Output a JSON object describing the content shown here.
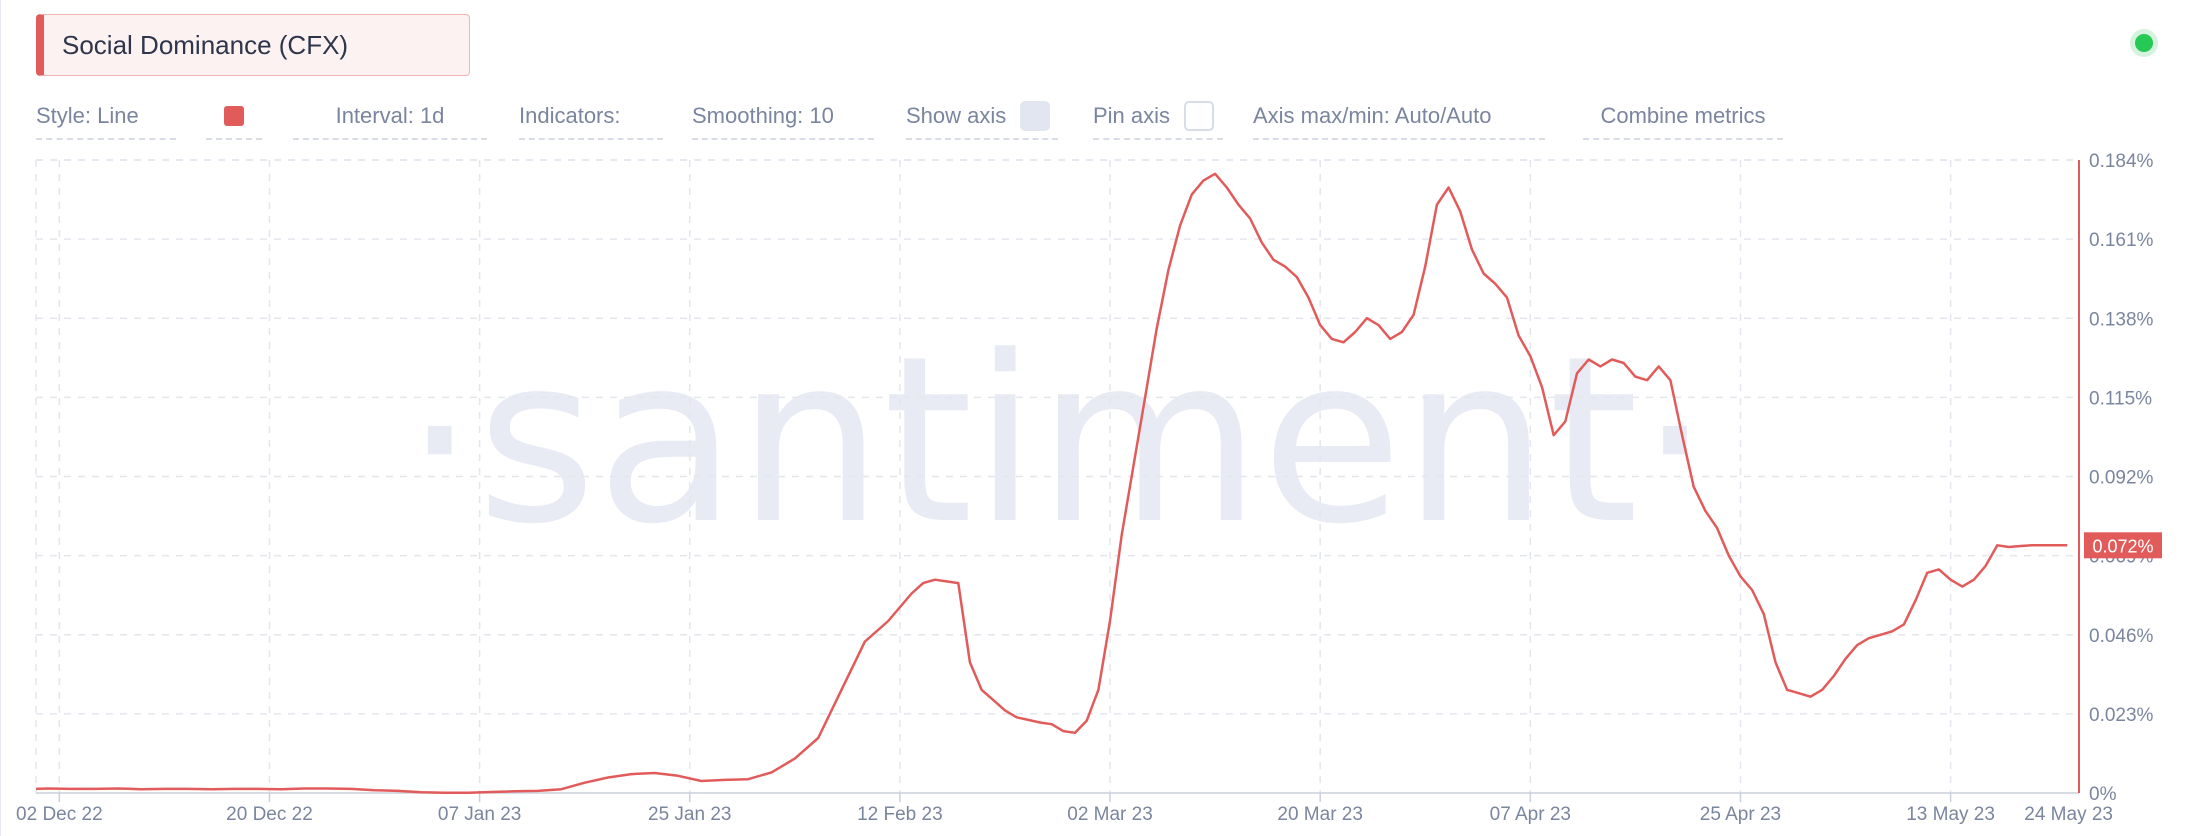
{
  "title": "Social Dominance (CFX)",
  "toolbar": {
    "style": "Style: Line",
    "interval": "Interval: 1d",
    "indicators": "Indicators:",
    "smoothing": "Smoothing: 10",
    "show_axis": "Show axis",
    "pin_axis": "Pin axis",
    "axis_maxmin": "Axis max/min: Auto/Auto",
    "combine": "Combine metrics",
    "show_axis_checked": true,
    "pin_axis_checked": false
  },
  "watermark": "·santiment·",
  "colors": {
    "line": "#e25b5b",
    "grid": "#e3e6ed",
    "text": "#7a859e",
    "watermark": "#e8ebf4",
    "status": "#26c953"
  },
  "chart_data": {
    "type": "line",
    "x_tick_labels": [
      "02 Dec 22",
      "20 Dec 22",
      "07 Jan 23",
      "25 Jan 23",
      "12 Feb 23",
      "02 Mar 23",
      "20 Mar 23",
      "07 Apr 23",
      "25 Apr 23",
      "13 May 23",
      "24 May 23"
    ],
    "y_tick_labels": [
      "0%",
      "0.023%",
      "0.046%",
      "0.069%",
      "0.092%",
      "0.115%",
      "0.138%",
      "0.161%",
      "0.184%"
    ],
    "ylim": [
      0,
      0.184
    ],
    "y_axis_side": "right",
    "grid": true,
    "current_value_label": "0.072%",
    "current_value": 0.072,
    "series": [
      {
        "x": [
          "2022-11-30",
          "2022-12-01",
          "2022-12-03",
          "2022-12-05",
          "2022-12-07",
          "2022-12-09",
          "2022-12-11",
          "2022-12-13",
          "2022-12-15",
          "2022-12-17",
          "2022-12-19",
          "2022-12-21",
          "2022-12-23",
          "2022-12-25",
          "2022-12-27",
          "2022-12-29",
          "2022-12-31",
          "2023-01-02",
          "2023-01-04",
          "2023-01-06",
          "2023-01-08",
          "2023-01-10",
          "2023-01-12",
          "2023-01-14",
          "2023-01-16",
          "2023-01-18",
          "2023-01-20",
          "2023-01-22",
          "2023-01-24",
          "2023-01-26",
          "2023-01-28",
          "2023-01-30",
          "2023-02-01",
          "2023-02-03",
          "2023-02-05",
          "2023-02-07",
          "2023-02-09",
          "2023-02-11",
          "2023-02-13",
          "2023-02-14",
          "2023-02-15",
          "2023-02-16",
          "2023-02-17",
          "2023-02-18",
          "2023-02-19",
          "2023-02-20",
          "2023-02-21",
          "2023-02-22",
          "2023-02-24",
          "2023-02-25",
          "2023-02-26",
          "2023-02-27",
          "2023-02-28",
          "2023-03-01",
          "2023-03-02",
          "2023-03-03",
          "2023-03-04",
          "2023-03-05",
          "2023-03-06",
          "2023-03-07",
          "2023-03-08",
          "2023-03-09",
          "2023-03-10",
          "2023-03-11",
          "2023-03-12",
          "2023-03-13",
          "2023-03-14",
          "2023-03-15",
          "2023-03-16",
          "2023-03-17",
          "2023-03-18",
          "2023-03-19",
          "2023-03-20",
          "2023-03-21",
          "2023-03-22",
          "2023-03-23",
          "2023-03-24",
          "2023-03-25",
          "2023-03-26",
          "2023-03-27",
          "2023-03-28",
          "2023-03-29",
          "2023-03-30",
          "2023-03-31",
          "2023-04-01",
          "2023-04-02",
          "2023-04-03",
          "2023-04-04",
          "2023-04-05",
          "2023-04-06",
          "2023-04-07",
          "2023-04-08",
          "2023-04-09",
          "2023-04-10",
          "2023-04-11",
          "2023-04-12",
          "2023-04-13",
          "2023-04-14",
          "2023-04-15",
          "2023-04-16",
          "2023-04-17",
          "2023-04-18",
          "2023-04-19",
          "2023-04-20",
          "2023-04-21",
          "2023-04-22",
          "2023-04-23",
          "2023-04-24",
          "2023-04-25",
          "2023-04-26",
          "2023-04-27",
          "2023-04-28",
          "2023-04-29",
          "2023-04-30",
          "2023-05-01",
          "2023-05-02",
          "2023-05-03",
          "2023-05-04",
          "2023-05-05",
          "2023-05-06",
          "2023-05-07",
          "2023-05-08",
          "2023-05-09",
          "2023-05-10",
          "2023-05-11",
          "2023-05-12",
          "2023-05-13",
          "2023-05-14",
          "2023-05-15",
          "2023-05-16",
          "2023-05-17",
          "2023-05-18",
          "2023-05-19",
          "2023-05-20",
          "2023-05-21",
          "2023-05-22",
          "2023-05-23"
        ],
        "y": [
          0.0012,
          0.0013,
          0.0012,
          0.0012,
          0.0013,
          0.0011,
          0.0012,
          0.0012,
          0.0011,
          0.0012,
          0.0012,
          0.0011,
          0.0013,
          0.0013,
          0.0012,
          0.0008,
          0.0006,
          0.0002,
          0.0001,
          0.0001,
          0.0003,
          0.0005,
          0.0006,
          0.0011,
          0.003,
          0.0045,
          0.0055,
          0.0058,
          0.005,
          0.0035,
          0.0038,
          0.004,
          0.006,
          0.01,
          0.016,
          0.03,
          0.044,
          0.05,
          0.058,
          0.061,
          0.062,
          0.0615,
          0.061,
          0.038,
          0.03,
          0.027,
          0.024,
          0.022,
          0.0205,
          0.02,
          0.018,
          0.0175,
          0.021,
          0.03,
          0.05,
          0.075,
          0.095,
          0.115,
          0.135,
          0.152,
          0.165,
          0.174,
          0.178,
          0.18,
          0.176,
          0.171,
          0.167,
          0.16,
          0.155,
          0.153,
          0.15,
          0.144,
          0.136,
          0.132,
          0.131,
          0.134,
          0.138,
          0.136,
          0.132,
          0.134,
          0.139,
          0.153,
          0.171,
          0.176,
          0.169,
          0.158,
          0.151,
          0.148,
          0.144,
          0.133,
          0.127,
          0.118,
          0.104,
          0.108,
          0.122,
          0.126,
          0.124,
          0.126,
          0.125,
          0.121,
          0.12,
          0.124,
          0.12,
          0.104,
          0.089,
          0.082,
          0.077,
          0.069,
          0.063,
          0.059,
          0.052,
          0.038,
          0.03,
          0.029,
          0.028,
          0.03,
          0.034,
          0.039,
          0.043,
          0.045,
          0.046,
          0.047,
          0.049,
          0.056,
          0.064,
          0.065,
          0.062,
          0.06,
          0.062,
          0.066,
          0.072,
          0.0715,
          0.0718,
          0.072,
          0.072,
          0.072,
          0.072
        ]
      }
    ]
  }
}
